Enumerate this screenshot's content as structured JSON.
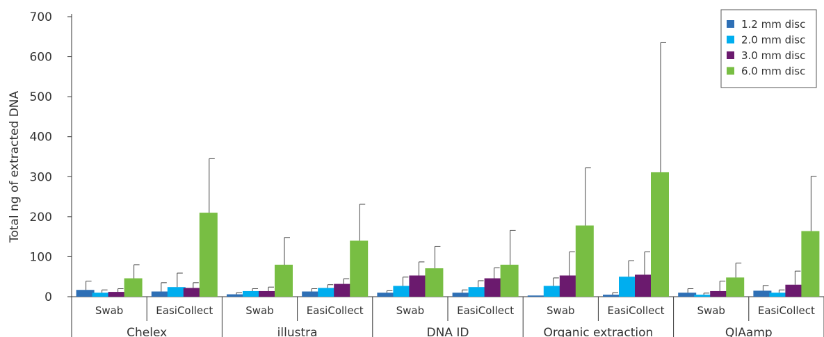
{
  "chart_data": {
    "type": "bar",
    "title": "",
    "ylabel": "Total ng of extracted DNA",
    "xlabel": "",
    "ylim": [
      0,
      700
    ],
    "yticks": [
      0,
      100,
      200,
      300,
      400,
      500,
      600,
      700
    ],
    "grid": false,
    "legend_position": "top-right",
    "groups": [
      "Chelex",
      "illustra",
      "DNA ID",
      "Organic extraction",
      "QIAamp"
    ],
    "subgroups": [
      "Swab",
      "EasiCollect"
    ],
    "categories": [
      "Chelex Swab",
      "Chelex EasiCollect",
      "illustra Swab",
      "illustra EasiCollect",
      "DNA ID Swab",
      "DNA ID EasiCollect",
      "Organic extraction Swab",
      "Organic extraction EasiCollect",
      "QIAamp Swab",
      "QIAamp EasiCollect"
    ],
    "series": [
      {
        "name": "1.2 mm disc",
        "color": "#2e6fb5",
        "values": [
          17,
          13,
          6,
          13,
          10,
          10,
          3,
          5,
          10,
          15
        ],
        "error": [
          22,
          22,
          4,
          7,
          5,
          7,
          0,
          5,
          10,
          13
        ]
      },
      {
        "name": "2.0 mm disc",
        "color": "#00aeef",
        "values": [
          10,
          24,
          14,
          22,
          27,
          24,
          27,
          50,
          5,
          10
        ],
        "error": [
          7,
          35,
          6,
          8,
          22,
          16,
          20,
          40,
          4,
          7
        ]
      },
      {
        "name": "3.0 mm disc",
        "color": "#6b1a6e",
        "values": [
          12,
          22,
          14,
          32,
          53,
          46,
          53,
          55,
          14,
          30
        ],
        "error": [
          8,
          13,
          10,
          13,
          34,
          26,
          59,
          57,
          25,
          34
        ]
      },
      {
        "name": "6.0 mm disc",
        "color": "#78be43",
        "values": [
          46,
          210,
          80,
          140,
          71,
          80,
          178,
          311,
          48,
          164
        ],
        "error": [
          34,
          135,
          68,
          91,
          55,
          86,
          144,
          324,
          36,
          137
        ]
      }
    ]
  }
}
